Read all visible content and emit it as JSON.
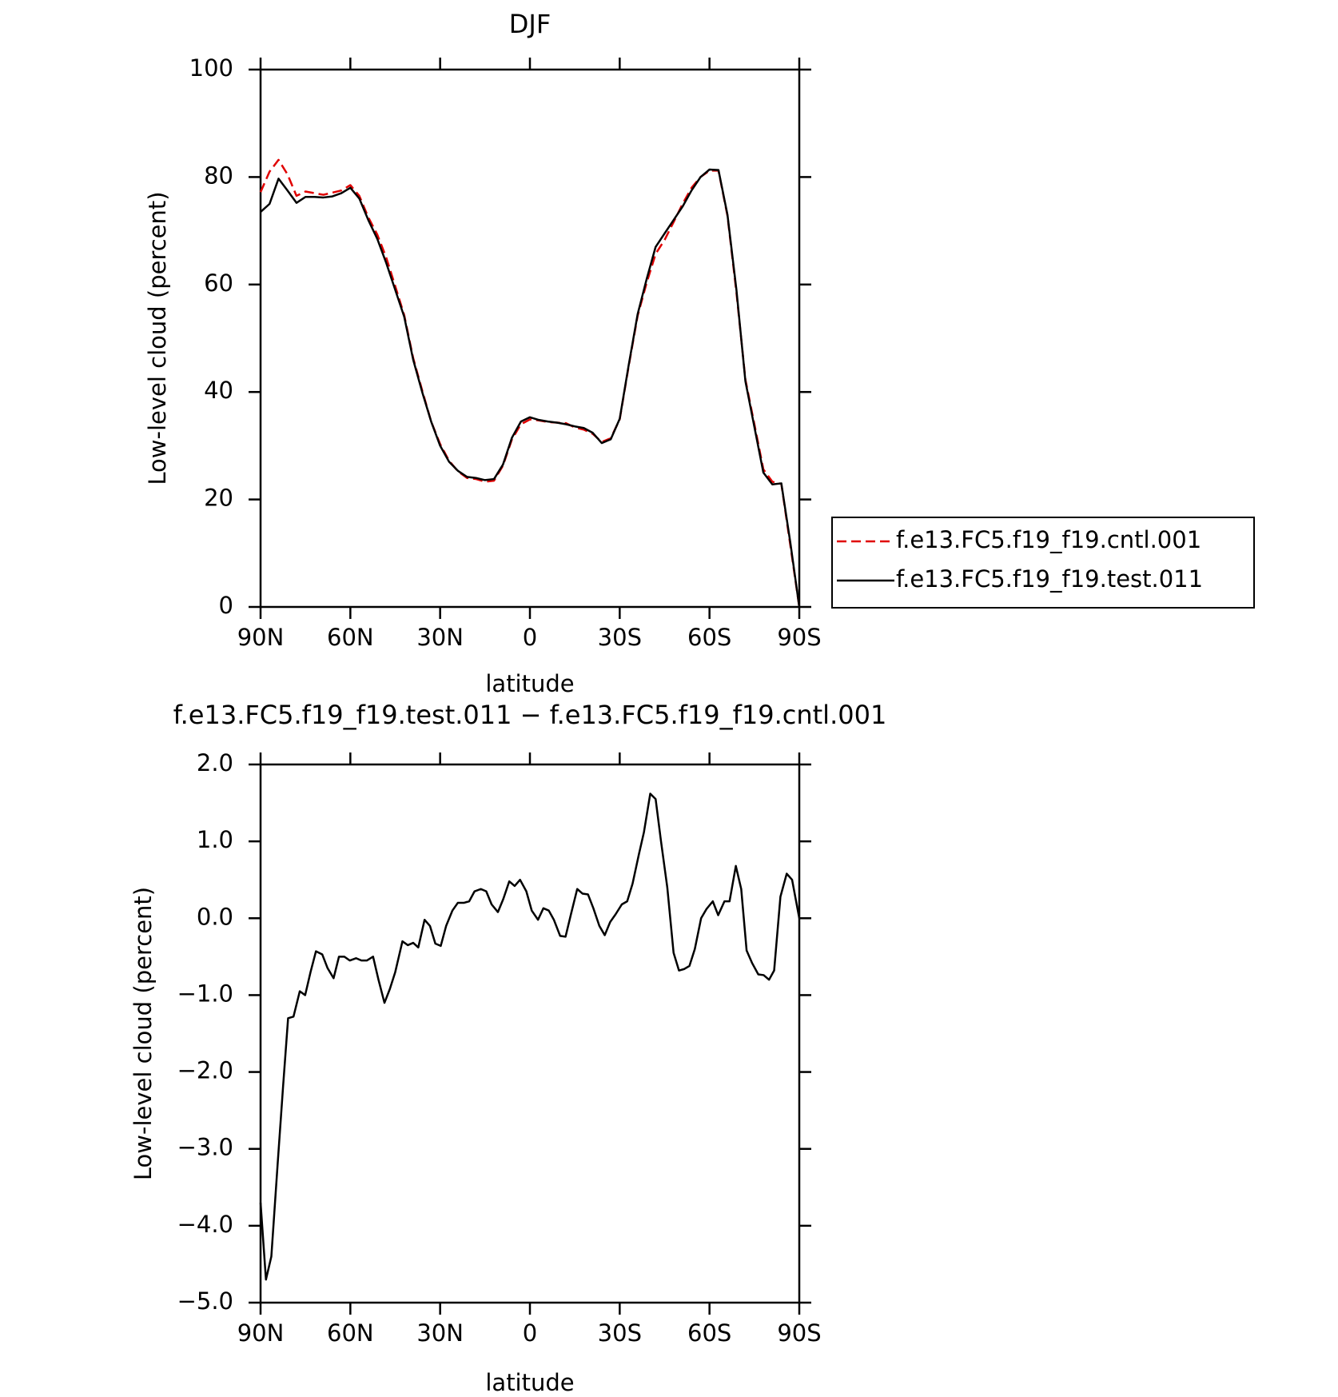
{
  "chart_data": [
    {
      "type": "line",
      "title": "DJF",
      "xlabel": "latitude",
      "ylabel": "Low-level cloud (percent)",
      "xlim": [
        90,
        -90
      ],
      "ylim": [
        0,
        100
      ],
      "xticks": [
        {
          "value": 90,
          "label": "90N"
        },
        {
          "value": 60,
          "label": "60N"
        },
        {
          "value": 30,
          "label": "30N"
        },
        0,
        {
          "value": -30,
          "label": "30S"
        },
        {
          "value": -60,
          "label": "60S"
        },
        {
          "value": -90,
          "label": "90S"
        }
      ],
      "yticks": [
        0,
        20,
        40,
        60,
        80,
        100
      ],
      "legend": "right",
      "x": [
        90,
        87,
        84,
        81,
        78,
        75,
        72,
        69,
        66,
        63,
        60,
        57,
        54,
        51,
        48,
        45,
        42,
        39,
        36,
        33,
        30,
        27,
        24,
        21,
        18,
        15,
        12,
        9,
        6,
        3,
        0,
        -3,
        -6,
        -9,
        -12,
        -15,
        -18,
        -21,
        -24,
        -27,
        -30,
        -33,
        -36,
        -39,
        -42,
        -45,
        -48,
        -51,
        -54,
        -57,
        -60,
        -63,
        -66,
        -69,
        -72,
        -75,
        -78,
        -81,
        -84,
        -87,
        -90
      ],
      "series": [
        {
          "name": "f.e13.FC5.f19_f19.cntl.001",
          "color": "#e00000",
          "dash": true,
          "values": [
            77.2,
            81,
            83.2,
            80.5,
            76.5,
            77.3,
            77,
            76.7,
            77.1,
            77.5,
            78.5,
            76.5,
            72.5,
            69.3,
            65,
            59.7,
            54.3,
            46.3,
            40.3,
            34.5,
            30.3,
            27.2,
            25.2,
            24,
            23.8,
            23.3,
            23.5,
            26.3,
            31.2,
            34,
            34.9,
            34.7,
            34.4,
            34.3,
            34.2,
            33.4,
            33,
            32.2,
            30.7,
            31.4,
            34.9,
            44.8,
            54.2,
            60.3,
            65.7,
            68.3,
            71.6,
            75,
            78,
            80,
            81.2,
            81.2,
            72.8,
            58.5,
            42.3,
            34,
            25.6,
            23.3,
            22.9,
            11.5,
            0
          ]
        },
        {
          "name": "f.e13.FC5.f19_f19.test.011",
          "color": "#000000",
          "dash": false,
          "values": [
            73.5,
            75,
            79.7,
            77.5,
            75.2,
            76.3,
            76.3,
            76.2,
            76.4,
            77,
            78,
            76,
            72,
            68.5,
            64,
            59,
            54,
            46,
            40,
            34.5,
            30,
            27,
            25.3,
            24.2,
            24,
            23.6,
            23.8,
            26.5,
            31.5,
            34.5,
            35.3,
            34.8,
            34.5,
            34.3,
            34,
            33.6,
            33.3,
            32.4,
            30.5,
            31.2,
            35,
            45,
            54.5,
            61,
            67,
            69.5,
            72,
            74.5,
            77.5,
            80,
            81.4,
            81.3,
            73,
            59,
            42,
            33.5,
            25,
            22.8,
            23,
            12,
            0
          ]
        }
      ]
    },
    {
      "type": "line",
      "title": "f.e13.FC5.f19_f19.test.011 − f.e13.FC5.f19_f19.cntl.001",
      "xlabel": "latitude",
      "ylabel": "Low-level cloud (percent)",
      "xlim": [
        90,
        -90
      ],
      "ylim": [
        -5,
        2
      ],
      "xticks": [
        {
          "value": 90,
          "label": "90N"
        },
        {
          "value": 60,
          "label": "60N"
        },
        {
          "value": 30,
          "label": "30N"
        },
        0,
        {
          "value": -30,
          "label": "30S"
        },
        {
          "value": -60,
          "label": "60S"
        },
        {
          "value": -90,
          "label": "90S"
        }
      ],
      "yticks": [
        {
          "value": 2,
          "label": "2.0"
        },
        {
          "value": 1,
          "label": "1.0"
        },
        {
          "value": 0,
          "label": "0.0"
        },
        {
          "value": -1,
          "label": "−1.0"
        },
        {
          "value": -2,
          "label": "−2.0"
        },
        {
          "value": -3,
          "label": "−3.0"
        },
        {
          "value": -4,
          "label": "−4.0"
        },
        {
          "value": -5,
          "label": "−5.0"
        }
      ],
      "x": [
        90,
        88.2,
        86.4,
        84.3,
        82.5,
        80.8,
        79,
        76.9,
        75.1,
        73.3,
        71.5,
        69.4,
        67.6,
        65.6,
        63.8,
        62,
        60.2,
        58.1,
        56.3,
        54.5,
        52.4,
        50.6,
        48.6,
        46.8,
        45,
        42.6,
        40.8,
        39,
        37.3,
        35.2,
        33.4,
        31.6,
        29.8,
        28,
        25.9,
        24.1,
        22.1,
        20.3,
        18.5,
        16.4,
        14.6,
        12.8,
        10.7,
        8.9,
        6.9,
        5.1,
        3.3,
        1.2,
        -0.6,
        -2.7,
        -4.5,
        -6.3,
        -8,
        -10.1,
        -11.9,
        -13.7,
        -15.8,
        -17.6,
        -19.4,
        -21.2,
        -23.2,
        -25,
        -26.8,
        -28.6,
        -30.7,
        -32.5,
        -34.3,
        -36.4,
        -38.1,
        -40.2,
        -42,
        -43.8,
        -45.9,
        -48,
        -49.8,
        -51.6,
        -53.3,
        -55.1,
        -57.2,
        -59,
        -61.1,
        -62.9,
        -65,
        -66.7,
        -68.8,
        -70.6,
        -72.4,
        -74.2,
        -76.3,
        -78.1,
        -79.9,
        -81.6,
        -83.7,
        -85.8,
        -87.6,
        -90
      ],
      "color": "#000000",
      "values": [
        -3.7,
        -4.7,
        -4.4,
        -3.2,
        -2.2,
        -1.3,
        -1.28,
        -0.95,
        -1.0,
        -0.7,
        -0.43,
        -0.47,
        -0.65,
        -0.78,
        -0.5,
        -0.5,
        -0.55,
        -0.52,
        -0.55,
        -0.55,
        -0.5,
        -0.8,
        -1.1,
        -0.92,
        -0.7,
        -0.3,
        -0.35,
        -0.32,
        -0.38,
        -0.02,
        -0.1,
        -0.33,
        -0.36,
        -0.1,
        0.1,
        0.2,
        0.2,
        0.22,
        0.35,
        0.38,
        0.35,
        0.18,
        0.08,
        0.25,
        0.48,
        0.42,
        0.5,
        0.35,
        0.1,
        -0.02,
        0.13,
        0.1,
        -0.02,
        -0.23,
        -0.24,
        0.05,
        0.38,
        0.32,
        0.31,
        0.13,
        -0.1,
        -0.22,
        -0.05,
        0.05,
        0.18,
        0.22,
        0.45,
        0.83,
        1.12,
        1.62,
        1.55,
        1.0,
        0.4,
        -0.45,
        -0.68,
        -0.66,
        -0.62,
        -0.4,
        0.0,
        0.12,
        0.22,
        0.04,
        0.22,
        0.22,
        0.68,
        0.38,
        -0.42,
        -0.58,
        -0.73,
        -0.74,
        -0.8,
        -0.68,
        0.28,
        0.58,
        0.5,
        0.0
      ]
    }
  ]
}
